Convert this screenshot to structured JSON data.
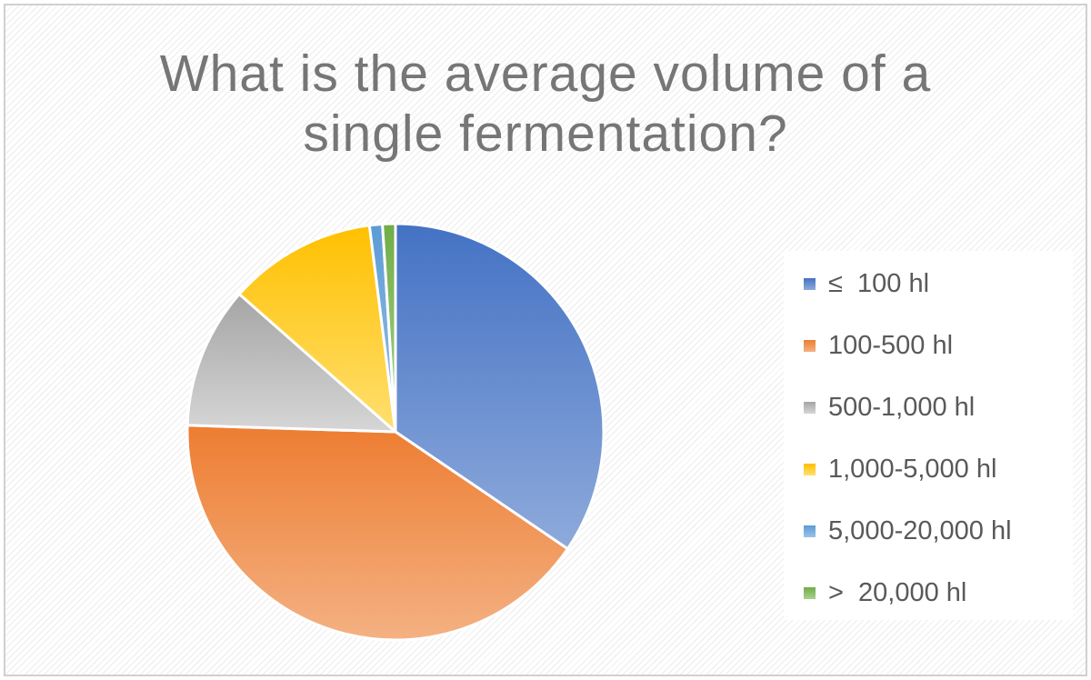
{
  "chart_data": {
    "type": "pie",
    "title": "What is the average volume of a single fermentation?",
    "title_lines": [
      "What is the average volume of a",
      "single fermentation?"
    ],
    "legend_position": "right",
    "start_angle_deg": 0,
    "direction": "clockwise",
    "slices": [
      {
        "label": "≤  100 hl",
        "value": 34.5,
        "color": "#4472c4",
        "color_light": "#8eaadb"
      },
      {
        "label": "100-500 hl",
        "value": 41.0,
        "color": "#ed7d31",
        "color_light": "#f4b183"
      },
      {
        "label": "500-1,000 hl",
        "value": 11.0,
        "color": "#a5a5a5",
        "color_light": "#d6d6d6"
      },
      {
        "label": "1,000-5,000 hl",
        "value": 11.5,
        "color": "#ffc000",
        "color_light": "#ffdf70"
      },
      {
        "label": "5,000-20,000 hl",
        "value": 1.0,
        "color": "#5b9bd5",
        "color_light": "#9dc3e6"
      },
      {
        "label": ">  20,000 hl",
        "value": 1.0,
        "color": "#70ad47",
        "color_light": "#a9d18e"
      }
    ]
  }
}
